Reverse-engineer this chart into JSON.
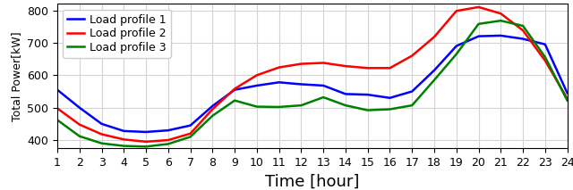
{
  "hours": [
    1,
    2,
    3,
    4,
    5,
    6,
    7,
    8,
    9,
    10,
    11,
    12,
    13,
    14,
    15,
    16,
    17,
    18,
    19,
    20,
    21,
    22,
    23,
    24
  ],
  "profile1": [
    555,
    500,
    450,
    428,
    425,
    430,
    445,
    505,
    555,
    568,
    578,
    572,
    568,
    542,
    540,
    530,
    550,
    615,
    690,
    720,
    722,
    712,
    695,
    545
  ],
  "profile2": [
    498,
    448,
    418,
    402,
    395,
    400,
    420,
    495,
    558,
    600,
    624,
    635,
    638,
    628,
    622,
    622,
    660,
    718,
    798,
    810,
    790,
    738,
    645,
    528
  ],
  "profile3": [
    462,
    412,
    390,
    382,
    380,
    388,
    410,
    475,
    522,
    503,
    502,
    507,
    532,
    507,
    492,
    495,
    507,
    585,
    665,
    758,
    768,
    752,
    656,
    522
  ],
  "colors": [
    "blue",
    "red",
    "green"
  ],
  "labels": [
    "Load profile 1",
    "Load profile 2",
    "Load profile 3"
  ],
  "xlabel": "Time [hour]",
  "ylabel": "Total Power[kW]",
  "ylim": [
    375,
    820
  ],
  "xlim": [
    1,
    24
  ],
  "xticks": [
    1,
    2,
    3,
    4,
    5,
    6,
    7,
    8,
    9,
    10,
    11,
    12,
    13,
    14,
    15,
    16,
    17,
    18,
    19,
    20,
    21,
    22,
    23,
    24
  ],
  "yticks": [
    400,
    500,
    600,
    700,
    800
  ],
  "grid": true,
  "linewidth": 1.8,
  "legend_fontsize": 9,
  "tick_fontsize": 9,
  "xlabel_fontsize": 13,
  "ylabel_fontsize": 9
}
